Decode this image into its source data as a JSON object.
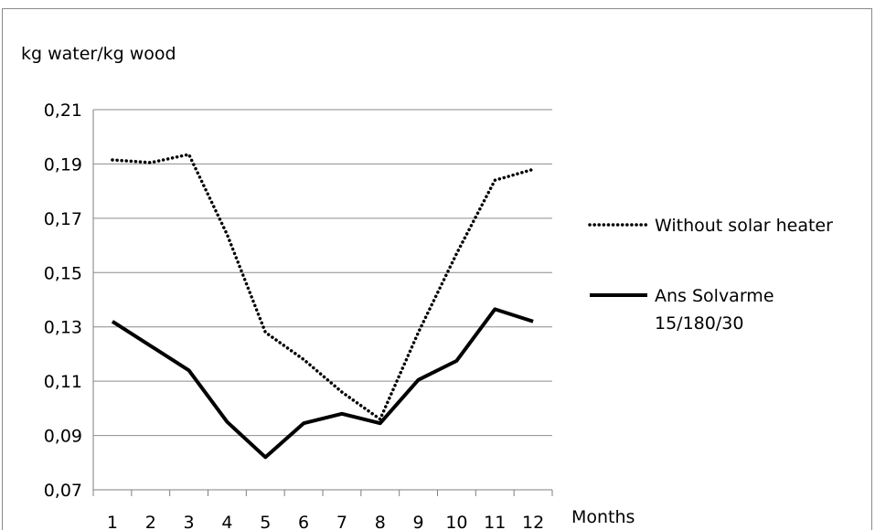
{
  "chart_data": {
    "type": "line",
    "ylabel": "kg water/kg wood",
    "xlabel": "Months",
    "categories": [
      "1",
      "2",
      "3",
      "4",
      "5",
      "6",
      "7",
      "8",
      "9",
      "10",
      "11",
      "12"
    ],
    "ylim": [
      0.07,
      0.21
    ],
    "yticks": [
      0.07,
      0.09,
      0.11,
      0.13,
      0.15,
      0.17,
      0.19,
      0.21
    ],
    "ytick_labels": [
      "0,07",
      "0,09",
      "0,11",
      "0,13",
      "0,15",
      "0,17",
      "0,19",
      "0,21"
    ],
    "grid": true,
    "legend_position": "right",
    "series": [
      {
        "name": "Without solar heater",
        "style": "dotted",
        "color": "#000000",
        "values": [
          0.1915,
          0.1905,
          0.1935,
          0.164,
          0.128,
          0.118,
          0.106,
          0.096,
          0.128,
          0.157,
          0.184,
          0.188
        ]
      },
      {
        "name": "Ans Solvarme 15/180/30",
        "style": "solid",
        "color": "#000000",
        "values": [
          0.132,
          0.123,
          0.114,
          0.095,
          0.082,
          0.0945,
          0.098,
          0.0945,
          0.1105,
          0.1175,
          0.1365,
          0.132
        ]
      }
    ]
  }
}
